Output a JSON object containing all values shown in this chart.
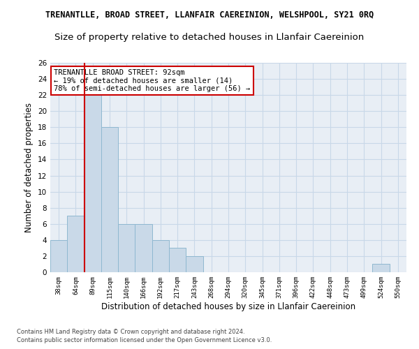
{
  "title": "TRENANTLLE, BROAD STREET, LLANFAIR CAEREINION, WELSHPOOL, SY21 0RQ",
  "subtitle": "Size of property relative to detached houses in Llanfair Caereinion",
  "xlabel": "Distribution of detached houses by size in Llanfair Caereinion",
  "ylabel": "Number of detached properties",
  "categories": [
    "38sqm",
    "64sqm",
    "89sqm",
    "115sqm",
    "140sqm",
    "166sqm",
    "192sqm",
    "217sqm",
    "243sqm",
    "268sqm",
    "294sqm",
    "320sqm",
    "345sqm",
    "371sqm",
    "396sqm",
    "422sqm",
    "448sqm",
    "473sqm",
    "499sqm",
    "524sqm",
    "550sqm"
  ],
  "values": [
    4,
    7,
    22,
    18,
    6,
    6,
    4,
    3,
    2,
    0,
    0,
    0,
    0,
    0,
    0,
    0,
    0,
    0,
    0,
    1,
    0
  ],
  "bar_color": "#c9d9e8",
  "bar_edge_color": "#8fb8d0",
  "vline_color": "#cc0000",
  "annotation_text": "TRENANTLLE BROAD STREET: 92sqm\n← 19% of detached houses are smaller (14)\n78% of semi-detached houses are larger (56) →",
  "annotation_box_color": "white",
  "annotation_box_edge_color": "#cc0000",
  "ylim": [
    0,
    26
  ],
  "yticks": [
    0,
    2,
    4,
    6,
    8,
    10,
    12,
    14,
    16,
    18,
    20,
    22,
    24,
    26
  ],
  "grid_color": "#c8d8e8",
  "background_color": "#e8eef5",
  "footer_line1": "Contains HM Land Registry data © Crown copyright and database right 2024.",
  "footer_line2": "Contains public sector information licensed under the Open Government Licence v3.0.",
  "title_fontsize": 8.5,
  "subtitle_fontsize": 9.5,
  "xlabel_fontsize": 8.5,
  "ylabel_fontsize": 8.5
}
